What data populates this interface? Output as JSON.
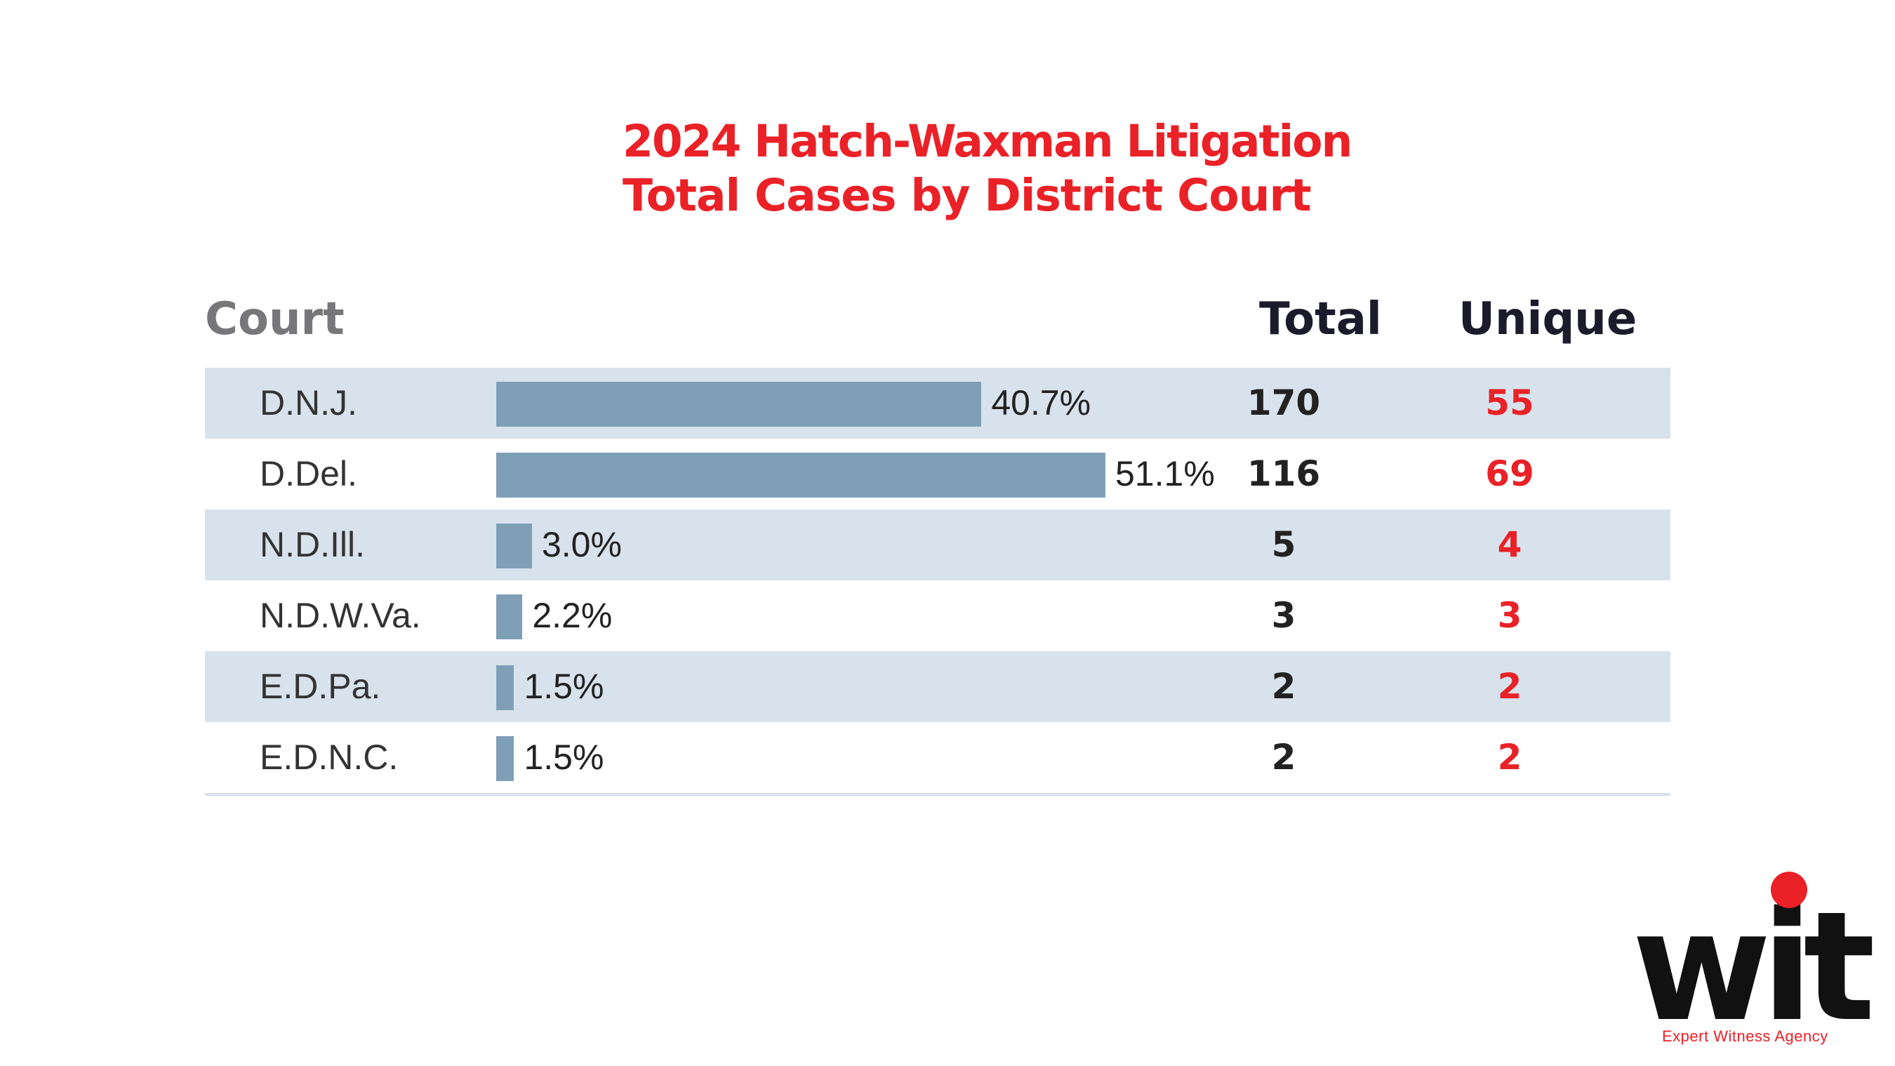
{
  "title": {
    "line1": "2024 Hatch-Waxman Litigation",
    "line2": "Total Cases by District Court"
  },
  "headers": {
    "court": "Court",
    "total": "Total",
    "unique": "Unique"
  },
  "chart_data": {
    "type": "bar",
    "title": "2024 Hatch-Waxman Litigation Total Cases by District Court",
    "categories": [
      "D.N.J.",
      "D.Del.",
      "N.D.Ill.",
      "N.D.W.Va.",
      "E.D.Pa.",
      "E.D.N.C."
    ],
    "values": [
      40.7,
      51.1,
      3.0,
      2.2,
      1.5,
      1.5
    ],
    "value_labels": [
      "40.7%",
      "51.1%",
      "3.0%",
      "2.2%",
      "1.5%",
      "1.5%"
    ],
    "total": [
      "170",
      "116",
      "5",
      "3",
      "2",
      "2"
    ],
    "unique": [
      "55",
      "69",
      "4",
      "3",
      "2",
      "2"
    ],
    "bar_color": "#7f9fb7",
    "ylim": [
      0,
      51.1
    ]
  },
  "colors": {
    "accent": "#ea2127",
    "row_shade": "#d7e2ec",
    "bar": "#7f9fb7"
  },
  "logo": {
    "text": "Expert Witness Agency",
    "wordmark": "wit"
  }
}
